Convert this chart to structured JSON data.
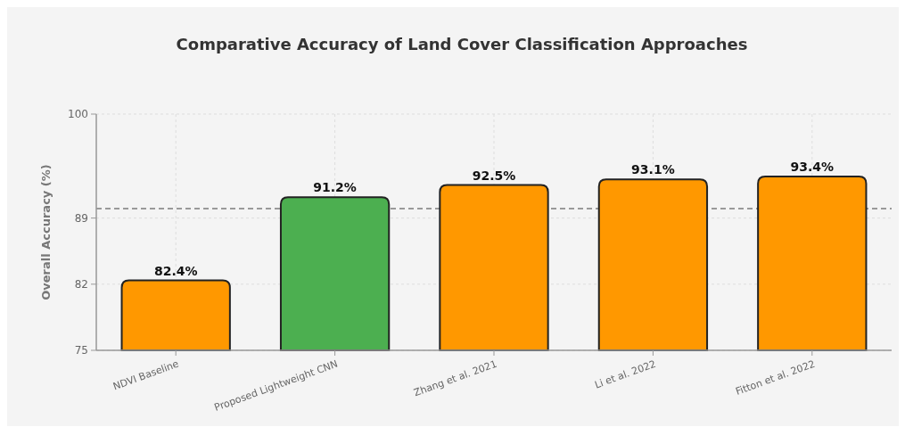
{
  "chart_data": {
    "type": "bar",
    "title": "Comparative Accuracy of Land Cover Classification Approaches",
    "ylabel": "Overall Accuracy (%)",
    "categories": [
      "NDVI Baseline",
      "Proposed Lightweight CNN",
      "Zhang et al. 2021",
      "Li et al. 2022",
      "Fitton et al. 2022"
    ],
    "values": [
      82.4,
      91.2,
      92.5,
      93.1,
      93.4
    ],
    "colors": [
      "#ff9800",
      "#4caf50",
      "#ff9800",
      "#ff9800",
      "#ff9800"
    ],
    "value_labels": [
      "82.4%",
      "91.2%",
      "92.5%",
      "93.1%",
      "93.4%"
    ],
    "ylim": [
      75,
      100
    ],
    "yticks": [
      75,
      82,
      89,
      100
    ],
    "grid": true,
    "ref_lines": [
      {
        "axis": "y",
        "value": 90,
        "label": null,
        "color": "#999999",
        "line_style": "dashed"
      }
    ]
  }
}
